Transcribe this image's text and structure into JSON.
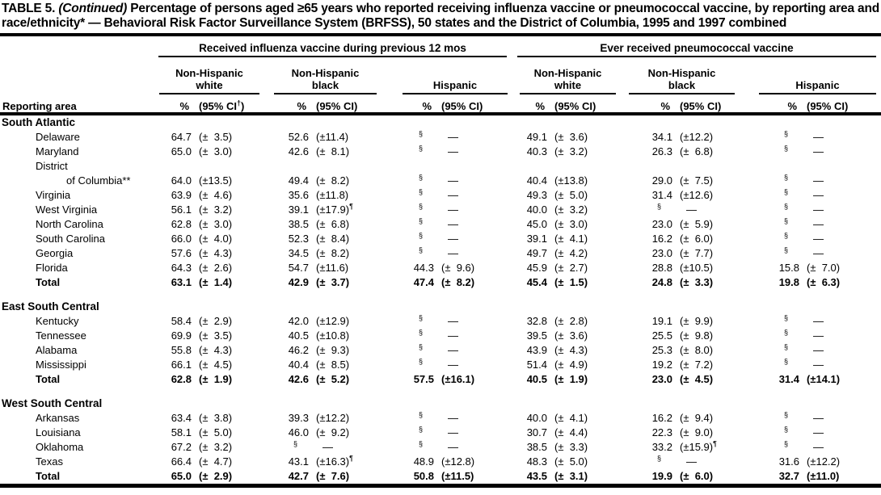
{
  "title": {
    "label": "TABLE 5.",
    "continued": "(Continued)",
    "rest": "Percentage of persons aged ≥65 years who reported receiving influenza vaccine or pneumococcal vaccine, by reporting area and race/ethnicity* — Behavioral Risk Factor Surveillance System (BRFSS), 50 states and the District of Columbia, 1995 and 1997 combined"
  },
  "header": {
    "reporting_area": "Reporting area",
    "groups": [
      {
        "label": "Received influenza vaccine during previous 12 mos",
        "subgroups": [
          {
            "line1": "Non-Hispanic",
            "line2": "white"
          },
          {
            "line1": "Non-Hispanic",
            "line2": "black"
          },
          {
            "line1": "",
            "line2": "Hispanic"
          }
        ]
      },
      {
        "label": "Ever received pneumococcal vaccine",
        "subgroups": [
          {
            "line1": "Non-Hispanic",
            "line2": "white"
          },
          {
            "line1": "Non-Hispanic",
            "line2": "black"
          },
          {
            "line1": "",
            "line2": "Hispanic"
          }
        ]
      }
    ],
    "columns": {
      "pct": "%",
      "ci_first": "(95% CI†)",
      "ci": "(95% CI)"
    }
  },
  "sections": [
    {
      "name": "South Atlantic",
      "rows": [
        {
          "area": "Delaware",
          "total": false,
          "cells": [
            "64.7",
            "(± 3.5)",
            "52.6",
            "(±11.4)",
            "§",
            "—",
            "49.1",
            "(± 3.6)",
            "34.1",
            "(±12.2)",
            "§",
            "—"
          ]
        },
        {
          "area": "Maryland",
          "total": false,
          "cells": [
            "65.0",
            "(± 3.0)",
            "42.6",
            "(± 8.1)",
            "§",
            "—",
            "40.3",
            "(± 3.2)",
            "26.3",
            "(± 6.8)",
            "§",
            "—"
          ]
        },
        {
          "area": "District",
          "total": false,
          "cells": null
        },
        {
          "area": "of Columbia**",
          "indent": 2,
          "total": false,
          "cells": [
            "64.0",
            "(±13.5)",
            "49.4",
            "(± 8.2)",
            "§",
            "—",
            "40.4",
            "(±13.8)",
            "29.0",
            "(± 7.5)",
            "§",
            "—"
          ]
        },
        {
          "area": "Virginia",
          "total": false,
          "cells": [
            "63.9",
            "(± 4.6)",
            "35.6",
            "(±11.8)",
            "§",
            "—",
            "49.3",
            "(± 5.0)",
            "31.4",
            "(±12.6)",
            "§",
            "—"
          ]
        },
        {
          "area": "West Virginia",
          "total": false,
          "cells": [
            "56.1",
            "(± 3.2)",
            "39.1",
            "(±17.9)¶",
            "§",
            "—",
            "40.0",
            "(± 3.2)",
            "§",
            "—",
            "§",
            "—"
          ]
        },
        {
          "area": "North Carolina",
          "total": false,
          "cells": [
            "62.8",
            "(± 3.0)",
            "38.5",
            "(± 6.8)",
            "§",
            "—",
            "45.0",
            "(± 3.0)",
            "23.0",
            "(± 5.9)",
            "§",
            "—"
          ]
        },
        {
          "area": "South Carolina",
          "total": false,
          "cells": [
            "66.0",
            "(± 4.0)",
            "52.3",
            "(± 8.4)",
            "§",
            "—",
            "39.1",
            "(± 4.1)",
            "16.2",
            "(± 6.0)",
            "§",
            "—"
          ]
        },
        {
          "area": "Georgia",
          "total": false,
          "cells": [
            "57.6",
            "(± 4.3)",
            "34.5",
            "(± 8.2)",
            "§",
            "—",
            "49.7",
            "(± 4.2)",
            "23.0",
            "(± 7.7)",
            "§",
            "—"
          ]
        },
        {
          "area": "Florida",
          "total": false,
          "cells": [
            "64.3",
            "(± 2.6)",
            "54.7",
            "(±11.6)",
            "44.3",
            "(± 9.6)",
            "45.9",
            "(± 2.7)",
            "28.8",
            "(±10.5)",
            "15.8",
            "(± 7.0)"
          ]
        },
        {
          "area": "Total",
          "total": true,
          "cells": [
            "63.1",
            "(± 1.4)",
            "42.9",
            "(± 3.7)",
            "47.4",
            "(± 8.2)",
            "45.4",
            "(± 1.5)",
            "24.8",
            "(± 3.3)",
            "19.8",
            "(± 6.3)"
          ]
        }
      ]
    },
    {
      "name": "East South Central",
      "rows": [
        {
          "area": "Kentucky",
          "total": false,
          "cells": [
            "58.4",
            "(± 2.9)",
            "42.0",
            "(±12.9)",
            "§",
            "—",
            "32.8",
            "(± 2.8)",
            "19.1",
            "(± 9.9)",
            "§",
            "—"
          ]
        },
        {
          "area": "Tennessee",
          "total": false,
          "cells": [
            "69.9",
            "(± 3.5)",
            "40.5",
            "(±10.8)",
            "§",
            "—",
            "39.5",
            "(± 3.6)",
            "25.5",
            "(± 9.8)",
            "§",
            "—"
          ]
        },
        {
          "area": "Alabama",
          "total": false,
          "cells": [
            "55.8",
            "(± 4.3)",
            "46.2",
            "(± 9.3)",
            "§",
            "—",
            "43.9",
            "(± 4.3)",
            "25.3",
            "(± 8.0)",
            "§",
            "—"
          ]
        },
        {
          "area": "Mississippi",
          "total": false,
          "cells": [
            "66.1",
            "(± 4.5)",
            "40.4",
            "(± 8.5)",
            "§",
            "—",
            "51.4",
            "(± 4.9)",
            "19.2",
            "(± 7.2)",
            "§",
            "—"
          ]
        },
        {
          "area": "Total",
          "total": true,
          "cells": [
            "62.8",
            "(± 1.9)",
            "42.6",
            "(± 5.2)",
            "57.5",
            "(±16.1)",
            "40.5",
            "(± 1.9)",
            "23.0",
            "(± 4.5)",
            "31.4",
            "(±14.1)"
          ]
        }
      ]
    },
    {
      "name": "West South Central",
      "rows": [
        {
          "area": "Arkansas",
          "total": false,
          "cells": [
            "63.4",
            "(± 3.8)",
            "39.3",
            "(±12.2)",
            "§",
            "—",
            "40.0",
            "(± 4.1)",
            "16.2",
            "(± 9.4)",
            "§",
            "—"
          ]
        },
        {
          "area": "Louisiana",
          "total": false,
          "cells": [
            "58.1",
            "(± 5.0)",
            "46.0",
            "(± 9.2)",
            "§",
            "—",
            "30.7",
            "(± 4.4)",
            "22.3",
            "(± 9.0)",
            "§",
            "—"
          ]
        },
        {
          "area": "Oklahoma",
          "total": false,
          "cells": [
            "67.2",
            "(± 3.2)",
            "§",
            "—",
            "§",
            "—",
            "38.5",
            "(± 3.3)",
            "33.2",
            "(±15.9)¶",
            "§",
            "—"
          ]
        },
        {
          "area": "Texas",
          "total": false,
          "cells": [
            "66.4",
            "(± 4.7)",
            "43.1",
            "(±16.3)¶",
            "48.9",
            "(±12.8)",
            "48.3",
            "(± 5.0)",
            "§",
            "—",
            "31.6",
            "(±12.2)"
          ]
        },
        {
          "area": "Total",
          "total": true,
          "cells": [
            "65.0",
            "(± 2.9)",
            "42.7",
            "(± 7.6)",
            "50.8",
            "(±11.5)",
            "43.5",
            "(± 3.1)",
            "19.9",
            "(± 6.0)",
            "32.7",
            "(±11.0)"
          ]
        }
      ]
    }
  ]
}
